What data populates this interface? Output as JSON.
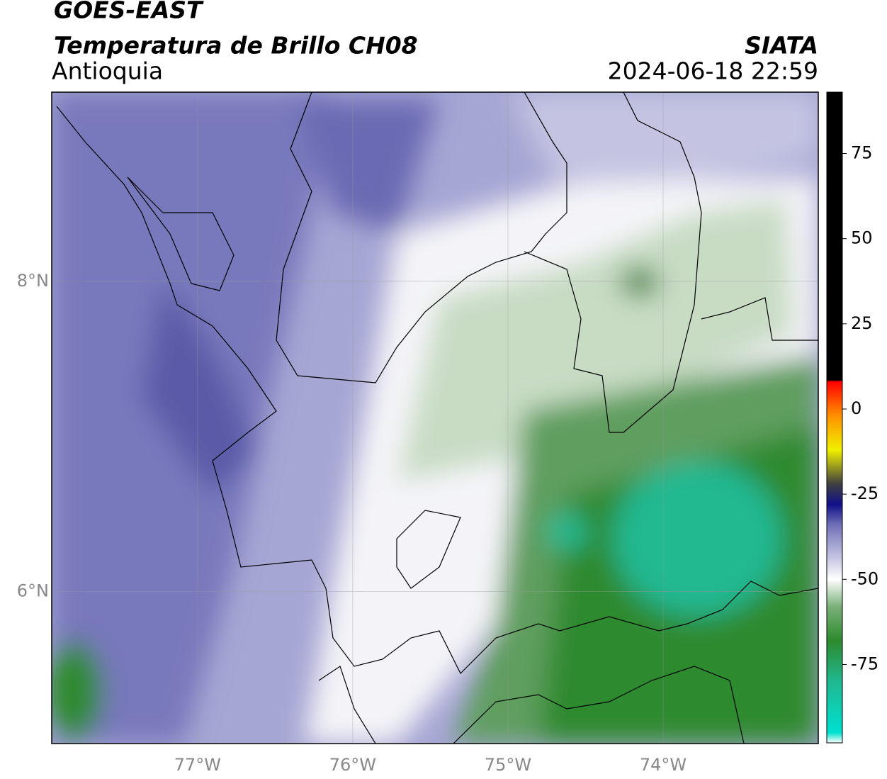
{
  "header": {
    "title": "GOES-EAST",
    "subtitle": "Temperatura de Brillo CH08",
    "region": "Antioquia",
    "source": "SIATA",
    "datetime": "2024-06-18 22:59"
  },
  "map": {
    "lonlim": [
      -77.94,
      -73.0
    ],
    "latlim": [
      5.02,
      9.22
    ],
    "grid": true,
    "lon_ticks": [
      {
        "value": -77,
        "label": "77°W"
      },
      {
        "value": -76,
        "label": "76°W"
      },
      {
        "value": -75,
        "label": "75°W"
      },
      {
        "value": -74,
        "label": "74°W"
      }
    ],
    "lat_ticks": [
      {
        "value": 8,
        "label": "8°N"
      },
      {
        "value": 6,
        "label": "6°N"
      }
    ]
  },
  "colorbar": {
    "lim": [
      -98,
      93
    ],
    "ticks": [
      75,
      50,
      25,
      0,
      -25,
      -50,
      -75
    ],
    "stops": [
      {
        "value": -98,
        "color": "#ffffff"
      },
      {
        "value": -95,
        "color": "#00e0d0"
      },
      {
        "value": -80,
        "color": "#20b890"
      },
      {
        "value": -68,
        "color": "#2e8a2e"
      },
      {
        "value": -58,
        "color": "#7ab07a"
      },
      {
        "value": -50,
        "color": "#ffffff"
      },
      {
        "value": -44,
        "color": "#c8c8e4"
      },
      {
        "value": -34,
        "color": "#7070b8"
      },
      {
        "value": -28,
        "color": "#101088"
      },
      {
        "value": -22,
        "color": "#404040"
      },
      {
        "value": -12,
        "color": "#f0f000"
      },
      {
        "value": -2,
        "color": "#ff9000"
      },
      {
        "value": 8,
        "color": "#ff0000"
      },
      {
        "value": 8.5,
        "color": "#000000"
      },
      {
        "value": 93,
        "color": "#000000"
      }
    ]
  }
}
